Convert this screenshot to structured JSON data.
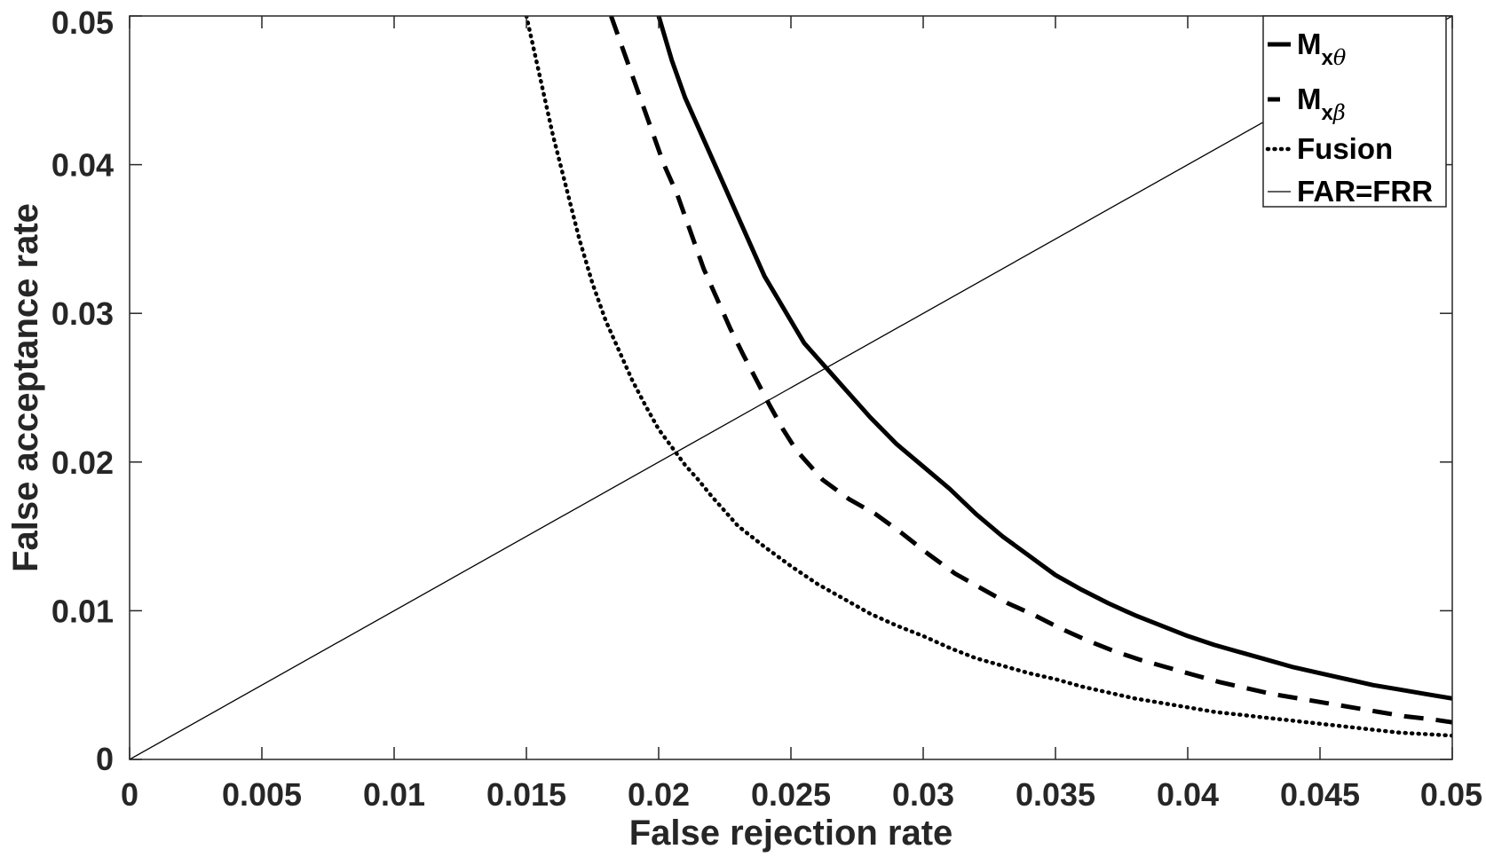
{
  "chart_data": {
    "type": "line",
    "title": "",
    "xlabel": "False rejection rate",
    "ylabel": "False acceptance rate",
    "xlim": [
      0,
      0.05
    ],
    "ylim": [
      0,
      0.05
    ],
    "xticks": [
      "0",
      "0.005",
      "0.01",
      "0.015",
      "0.02",
      "0.025",
      "0.03",
      "0.035",
      "0.04",
      "0.045",
      "0.05"
    ],
    "yticks": [
      "0",
      "0.01",
      "0.02",
      "0.03",
      "0.04",
      "0.05"
    ],
    "grid": false,
    "legend_position": "top-right",
    "series": [
      {
        "name": "M",
        "subscript": "x",
        "symbol": "θ",
        "style": "solid-thick",
        "color": "#000000",
        "x": [
          0.02,
          0.0205,
          0.021,
          0.0215,
          0.022,
          0.0225,
          0.023,
          0.0235,
          0.024,
          0.0245,
          0.025,
          0.0255,
          0.026,
          0.0265,
          0.027,
          0.028,
          0.029,
          0.03,
          0.031,
          0.032,
          0.033,
          0.034,
          0.035,
          0.036,
          0.037,
          0.038,
          0.039,
          0.04,
          0.041,
          0.042,
          0.043,
          0.044,
          0.045,
          0.046,
          0.047,
          0.048,
          0.049,
          0.05
        ],
        "y": [
          0.05,
          0.047,
          0.0445,
          0.0425,
          0.0405,
          0.0385,
          0.0365,
          0.0345,
          0.0325,
          0.031,
          0.0295,
          0.028,
          0.027,
          0.026,
          0.025,
          0.023,
          0.0212,
          0.0197,
          0.0182,
          0.0165,
          0.015,
          0.0137,
          0.0124,
          0.0114,
          0.0105,
          0.0097,
          0.009,
          0.0083,
          0.0077,
          0.0072,
          0.0067,
          0.0062,
          0.0058,
          0.0054,
          0.005,
          0.0047,
          0.0044,
          0.0041
        ]
      },
      {
        "name": "M",
        "subscript": "x",
        "symbol": "β",
        "style": "dashed",
        "color": "#000000",
        "x": [
          0.0182,
          0.0187,
          0.0192,
          0.0197,
          0.0202,
          0.0207,
          0.0212,
          0.0217,
          0.0222,
          0.0227,
          0.0232,
          0.0237,
          0.0242,
          0.0247,
          0.0252,
          0.0262,
          0.0272,
          0.0282,
          0.0292,
          0.0302,
          0.0312,
          0.0322,
          0.0332,
          0.0342,
          0.0352,
          0.0362,
          0.0372,
          0.0382,
          0.0392,
          0.0402,
          0.0412,
          0.0422,
          0.0432,
          0.0442,
          0.0452,
          0.0462,
          0.0472,
          0.0482,
          0.0492,
          0.05
        ],
        "y": [
          0.05,
          0.0475,
          0.045,
          0.0425,
          0.04,
          0.038,
          0.0355,
          0.033,
          0.031,
          0.029,
          0.0272,
          0.0255,
          0.0238,
          0.0222,
          0.0208,
          0.0188,
          0.0175,
          0.0165,
          0.0152,
          0.0138,
          0.0125,
          0.0115,
          0.0105,
          0.0097,
          0.0088,
          0.008,
          0.0073,
          0.0067,
          0.0062,
          0.0057,
          0.0052,
          0.0048,
          0.0044,
          0.0041,
          0.0038,
          0.0035,
          0.0032,
          0.0029,
          0.0027,
          0.0025
        ]
      },
      {
        "name": "Fusion",
        "style": "dotted",
        "color": "#000000",
        "x": [
          0.015,
          0.0155,
          0.016,
          0.0165,
          0.017,
          0.0175,
          0.018,
          0.0185,
          0.019,
          0.0195,
          0.02,
          0.0205,
          0.021,
          0.0215,
          0.022,
          0.0225,
          0.023,
          0.024,
          0.025,
          0.026,
          0.027,
          0.028,
          0.029,
          0.03,
          0.031,
          0.032,
          0.033,
          0.034,
          0.035,
          0.036,
          0.037,
          0.038,
          0.039,
          0.04,
          0.041,
          0.042,
          0.043,
          0.044,
          0.045,
          0.046,
          0.047,
          0.048,
          0.049,
          0.05
        ],
        "y": [
          0.05,
          0.046,
          0.042,
          0.0385,
          0.035,
          0.032,
          0.0295,
          0.0275,
          0.0255,
          0.0238,
          0.0222,
          0.021,
          0.0198,
          0.0188,
          0.0177,
          0.0167,
          0.0157,
          0.0143,
          0.013,
          0.0118,
          0.0108,
          0.0098,
          0.009,
          0.0083,
          0.0075,
          0.0068,
          0.0063,
          0.0058,
          0.0054,
          0.0049,
          0.0045,
          0.0041,
          0.0038,
          0.0035,
          0.0032,
          0.003,
          0.0028,
          0.0026,
          0.0024,
          0.0022,
          0.002,
          0.0018,
          0.0017,
          0.0016
        ]
      },
      {
        "name": "FAR=FRR",
        "style": "solid-thin",
        "color": "#000000",
        "x": [
          0,
          0.05
        ],
        "y": [
          0,
          0.05
        ]
      }
    ]
  }
}
